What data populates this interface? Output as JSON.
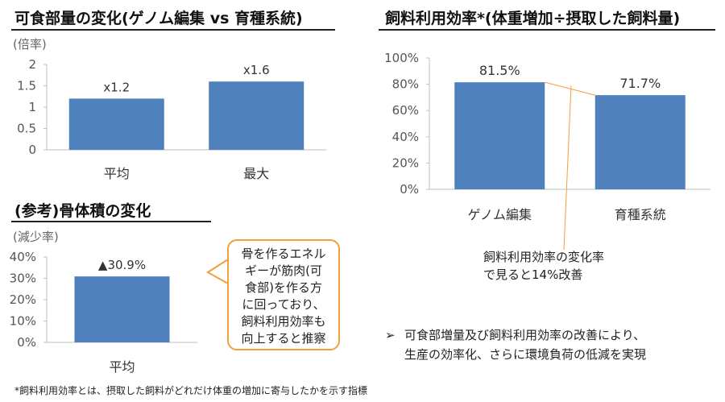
{
  "chart_data": [
    {
      "type": "bar",
      "title": "可食部量の変化(ゲノム編集 vs 育種系統)",
      "unit_label": "(倍率)",
      "categories": [
        "平均",
        "最大"
      ],
      "values": [
        1.2,
        1.6
      ],
      "data_labels": [
        "x1.2",
        "x1.6"
      ],
      "ylim": [
        0,
        2
      ],
      "yticks": [
        "0",
        "0.5",
        "1",
        "1.5",
        "2"
      ],
      "grid": false,
      "color": "#4f81bd"
    },
    {
      "type": "bar",
      "title": "(参考)骨体積の変化",
      "unit_label": "(減少率)",
      "categories": [
        "平均"
      ],
      "values": [
        30.9
      ],
      "data_labels": [
        "▲30.9%"
      ],
      "ylim": [
        0,
        40
      ],
      "yticks": [
        "0%",
        "10%",
        "20%",
        "30%",
        "40%"
      ],
      "grid": false,
      "color": "#4f81bd"
    },
    {
      "type": "bar",
      "title": "飼料利用効率*(体重増加÷摂取した飼料量)",
      "categories": [
        "ゲノム編集",
        "育種系統"
      ],
      "values": [
        81.5,
        71.7
      ],
      "data_labels": [
        "81.5%",
        "71.7%"
      ],
      "ylim": [
        0,
        100
      ],
      "yticks": [
        "0%",
        "20%",
        "40%",
        "60%",
        "80%",
        "100%"
      ],
      "grid": false,
      "color": "#4f81bd"
    }
  ],
  "callout": {
    "lines": [
      "骨を作るエネル",
      "ギーが筋肉(可",
      "食部)を作る方",
      "に回っており、",
      "飼料利用効率も",
      "向上すると推察"
    ]
  },
  "annotation": {
    "lines": [
      "飼料利用効率の変化率",
      "で見ると14%改善"
    ]
  },
  "bullet": {
    "marker": "➢",
    "lines": [
      "可食部増量及び飼料利用効率の改善により、",
      "生産の効率化、さらに環境負荷の低減を実現"
    ]
  },
  "footnote": "*飼料利用効率とは、摂取した飼料がどれだけ体重の増加に寄与したかを示す指標",
  "colors": {
    "bar": "#4f81bd",
    "callout_border": "#f0a040",
    "connector": "#f0a040"
  }
}
